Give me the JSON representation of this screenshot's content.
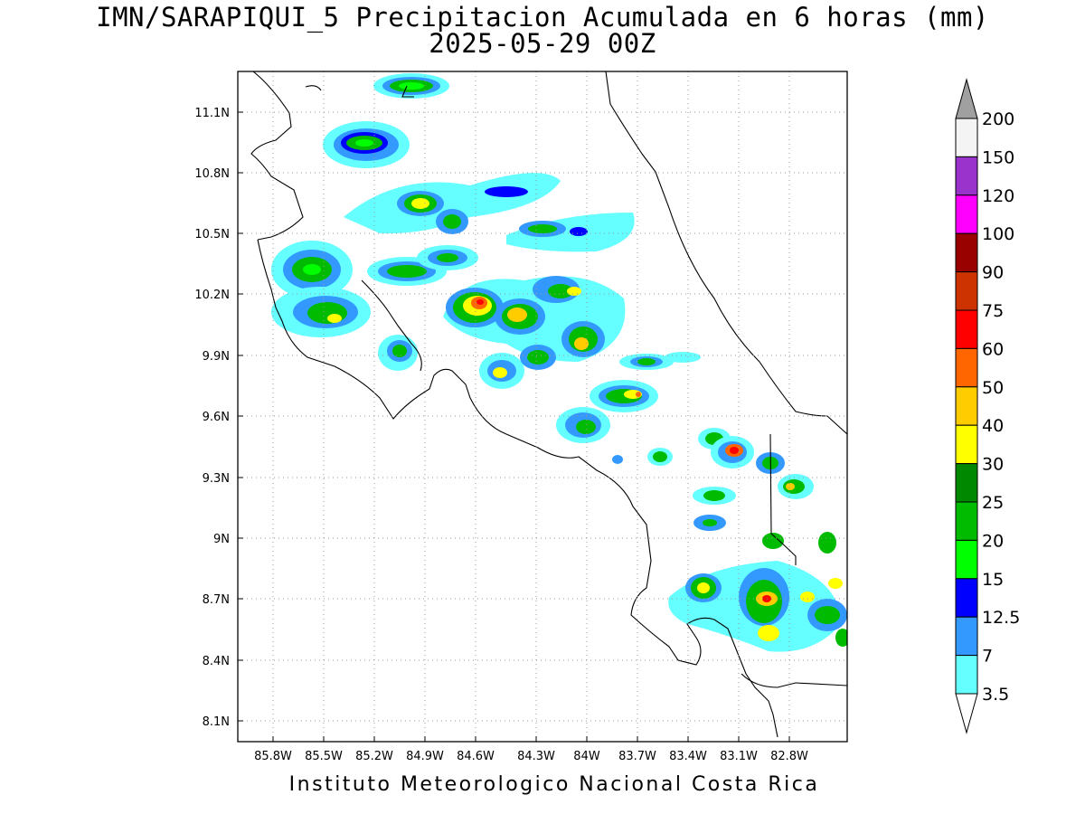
{
  "title": {
    "line1": "IMN/SARAPIQUI_5 Precipitacion Acumulada en 6 horas (mm)",
    "line2": "2025-05-29 00Z"
  },
  "footer": "Instituto Meteorologico Nacional Costa Rica",
  "map": {
    "lon_labels": [
      "85.8W",
      "85.5W",
      "85.2W",
      "84.9W",
      "84.6W",
      "84.3W",
      "84W",
      "83.7W",
      "83.4W",
      "83.1W",
      "82.8W"
    ],
    "lat_labels": [
      "11.1N",
      "10.8N",
      "10.5N",
      "10.2N",
      "9.9N",
      "9.6N",
      "9.3N",
      "9N",
      "8.7N",
      "8.4N",
      "8.1N"
    ],
    "grid": "dotted"
  },
  "colorbar": {
    "levels": [
      "200",
      "150",
      "120",
      "100",
      "90",
      "75",
      "60",
      "50",
      "40",
      "30",
      "25",
      "20",
      "15",
      "12.5",
      "7",
      "3.5"
    ],
    "colors": [
      "#f4f4f4",
      "#9933cc",
      "#ff00ff",
      "#990000",
      "#cc3300",
      "#ff0000",
      "#ff6600",
      "#ffcc00",
      "#ffff00",
      "#008800",
      "#00bb00",
      "#00ff00",
      "#0000ff",
      "#3399ff",
      "#66ffff"
    ],
    "over_color": "#a0a0a0",
    "under_color": "#ffffff"
  }
}
